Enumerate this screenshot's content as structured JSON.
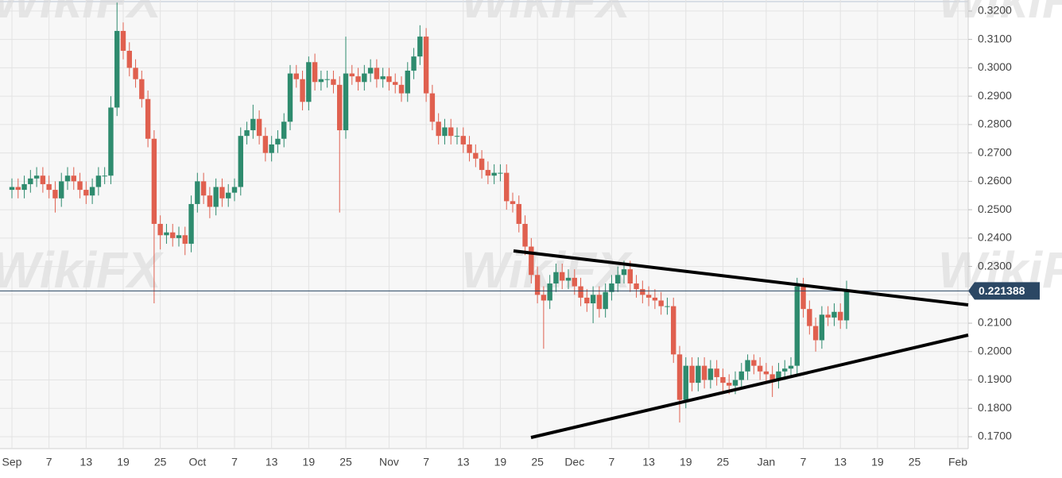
{
  "chart_data": {
    "type": "candlestick",
    "watermark": "WikiFX",
    "up_color": "#2e8b6e",
    "down_color": "#e0604f",
    "grid": true,
    "categories": [
      "Sep",
      null,
      null,
      null,
      null,
      null,
      "7",
      null,
      null,
      null,
      null,
      null,
      "13",
      null,
      null,
      null,
      null,
      null,
      "19",
      null,
      null,
      null,
      null,
      null,
      "25",
      null,
      null,
      null,
      null,
      null,
      "Oct",
      null,
      null,
      null,
      null,
      null,
      "7",
      null,
      null,
      null,
      null,
      null,
      "13",
      null,
      null,
      null,
      null,
      null,
      "19",
      null,
      null,
      null,
      null,
      null,
      "25",
      null,
      null,
      null,
      null,
      null,
      null,
      "Nov",
      null,
      null,
      null,
      null,
      null,
      "7",
      null,
      null,
      null,
      null,
      null,
      "13",
      null,
      null,
      null,
      null,
      null,
      "19",
      null,
      null,
      null,
      null,
      null,
      "25",
      null,
      null,
      null,
      null,
      null,
      "Dec",
      null,
      null,
      null,
      null,
      null,
      "7",
      null,
      null,
      null,
      null,
      null,
      "13",
      null,
      null,
      null,
      null,
      null,
      "19",
      null,
      null,
      null,
      null,
      null,
      "25",
      null,
      null,
      null,
      null,
      null,
      null,
      "Jan",
      null,
      null,
      null,
      null,
      null,
      "7",
      null,
      null,
      null,
      null,
      null,
      "13",
      null,
      null,
      null,
      null,
      null,
      "19",
      null,
      null,
      null,
      null,
      null,
      "25",
      null,
      null,
      null,
      null,
      null,
      null,
      "Feb"
    ],
    "open": [
      0.257,
      0.258,
      0.257,
      0.259,
      0.261,
      0.262,
      0.259,
      0.257,
      0.254,
      0.26,
      0.262,
      0.26,
      0.257,
      0.255,
      0.258,
      0.262,
      0.262,
      0.286,
      0.313,
      0.306,
      0.3,
      0.296,
      0.289,
      0.275,
      0.245,
      0.241,
      0.242,
      0.24,
      0.241,
      0.238,
      0.252,
      0.26,
      0.255,
      0.251,
      0.258,
      0.254,
      0.256,
      0.258,
      0.276,
      0.278,
      0.282,
      0.276,
      0.27,
      0.273,
      0.275,
      0.281,
      0.298,
      0.296,
      0.288,
      0.302,
      0.295,
      0.296,
      0.296,
      0.294,
      0.278,
      0.298,
      0.297,
      0.295,
      0.298,
      0.3,
      0.296,
      0.297,
      0.295,
      0.294,
      0.291,
      0.299,
      0.304,
      0.311,
      0.291,
      0.281,
      0.276,
      0.279,
      0.276,
      0.276,
      0.273,
      0.27,
      0.268,
      0.264,
      0.262,
      0.263,
      0.263,
      0.253,
      0.252,
      0.245,
      0.237,
      0.227,
      0.22,
      0.218,
      0.224,
      0.228,
      0.225,
      0.226,
      0.223,
      0.219,
      0.217,
      0.22,
      0.215,
      0.221,
      0.224,
      0.227,
      0.229,
      0.224,
      0.222,
      0.22,
      0.219,
      0.218,
      0.216,
      0.216,
      0.199,
      0.183,
      0.195,
      0.189,
      0.195,
      0.19,
      0.194,
      0.191,
      0.189,
      0.188,
      0.19,
      0.193,
      0.197,
      0.195,
      0.193,
      0.192,
      0.19,
      0.193,
      0.194,
      0.195,
      0.223,
      0.215,
      0.209,
      0.204,
      0.213,
      0.212,
      0.214,
      0.211,
      null,
      null,
      null,
      null,
      null,
      null,
      null,
      null,
      null,
      null,
      null,
      null,
      null,
      null,
      null,
      null,
      null,
      null
    ],
    "high": [
      0.261,
      0.261,
      0.262,
      0.264,
      0.265,
      0.265,
      0.262,
      0.26,
      0.263,
      0.265,
      0.265,
      0.263,
      0.26,
      0.261,
      0.265,
      0.265,
      0.29,
      0.323,
      0.316,
      0.309,
      0.303,
      0.299,
      0.292,
      0.278,
      0.248,
      0.245,
      0.245,
      0.244,
      0.244,
      0.255,
      0.263,
      0.263,
      0.258,
      0.261,
      0.261,
      0.259,
      0.261,
      0.279,
      0.281,
      0.287,
      0.285,
      0.279,
      0.276,
      0.278,
      0.284,
      0.301,
      0.301,
      0.299,
      0.304,
      0.305,
      0.299,
      0.299,
      0.299,
      0.297,
      0.311,
      0.301,
      0.3,
      0.301,
      0.303,
      0.303,
      0.3,
      0.3,
      0.298,
      0.297,
      0.302,
      0.307,
      0.315,
      0.314,
      0.294,
      0.284,
      0.282,
      0.282,
      0.279,
      0.279,
      0.276,
      0.273,
      0.271,
      0.267,
      0.266,
      0.266,
      0.266,
      0.256,
      0.255,
      0.248,
      0.24,
      0.23,
      0.223,
      0.227,
      0.231,
      0.231,
      0.229,
      0.229,
      0.226,
      0.222,
      0.223,
      0.223,
      0.224,
      0.227,
      0.23,
      0.232,
      0.232,
      0.227,
      0.225,
      0.223,
      0.222,
      0.221,
      0.219,
      0.219,
      0.202,
      0.198,
      0.198,
      0.198,
      0.198,
      0.197,
      0.197,
      0.194,
      0.192,
      0.193,
      0.196,
      0.199,
      0.199,
      0.198,
      0.196,
      0.195,
      0.196,
      0.197,
      0.198,
      0.226,
      0.226,
      0.218,
      0.212,
      0.216,
      0.216,
      0.217,
      0.217,
      0.225,
      null,
      null,
      null,
      null,
      null,
      null,
      null,
      null,
      null,
      null,
      null,
      null,
      null,
      null,
      null,
      null,
      null,
      null
    ],
    "low": [
      0.254,
      0.254,
      0.254,
      0.256,
      0.258,
      0.256,
      0.254,
      0.249,
      0.251,
      0.257,
      0.257,
      0.254,
      0.252,
      0.252,
      0.255,
      0.259,
      0.259,
      0.283,
      0.303,
      0.297,
      0.293,
      0.286,
      0.272,
      0.217,
      0.236,
      0.238,
      0.237,
      0.237,
      0.234,
      0.235,
      0.249,
      0.252,
      0.247,
      0.248,
      0.251,
      0.251,
      0.253,
      0.255,
      0.273,
      0.275,
      0.273,
      0.267,
      0.267,
      0.27,
      0.272,
      0.278,
      0.293,
      0.285,
      0.285,
      0.292,
      0.292,
      0.293,
      0.291,
      0.249,
      0.275,
      0.294,
      0.292,
      0.292,
      0.295,
      0.293,
      0.293,
      0.292,
      0.291,
      0.288,
      0.288,
      0.296,
      0.301,
      0.288,
      0.278,
      0.273,
      0.273,
      0.273,
      0.273,
      0.27,
      0.267,
      0.265,
      0.261,
      0.259,
      0.259,
      0.26,
      0.25,
      0.249,
      0.242,
      0.234,
      0.224,
      0.217,
      0.201,
      0.215,
      0.221,
      0.222,
      0.222,
      0.22,
      0.216,
      0.214,
      0.21,
      0.212,
      0.212,
      0.218,
      0.221,
      0.224,
      0.221,
      0.219,
      0.217,
      0.216,
      0.215,
      0.213,
      0.213,
      0.196,
      0.175,
      0.18,
      0.186,
      0.186,
      0.187,
      0.187,
      0.188,
      0.186,
      0.185,
      0.185,
      0.187,
      0.19,
      0.192,
      0.19,
      0.189,
      0.184,
      0.187,
      0.19,
      0.191,
      0.192,
      0.212,
      0.206,
      0.2,
      0.201,
      0.209,
      0.209,
      0.208,
      0.208,
      null,
      null,
      null,
      null,
      null,
      null,
      null,
      null,
      null,
      null,
      null,
      null,
      null,
      null,
      null,
      null,
      null,
      null
    ],
    "close": [
      0.258,
      0.257,
      0.259,
      0.261,
      0.262,
      0.259,
      0.257,
      0.254,
      0.26,
      0.262,
      0.26,
      0.257,
      0.255,
      0.258,
      0.262,
      0.262,
      0.286,
      0.313,
      0.306,
      0.3,
      0.296,
      0.289,
      0.275,
      0.245,
      0.241,
      0.242,
      0.24,
      0.241,
      0.238,
      0.252,
      0.26,
      0.255,
      0.251,
      0.258,
      0.254,
      0.256,
      0.258,
      0.276,
      0.278,
      0.282,
      0.276,
      0.27,
      0.273,
      0.275,
      0.281,
      0.298,
      0.296,
      0.288,
      0.302,
      0.295,
      0.296,
      0.296,
      0.294,
      0.278,
      0.298,
      0.297,
      0.295,
      0.298,
      0.3,
      0.296,
      0.297,
      0.295,
      0.294,
      0.291,
      0.299,
      0.304,
      0.311,
      0.291,
      0.281,
      0.276,
      0.279,
      0.276,
      0.276,
      0.273,
      0.27,
      0.268,
      0.264,
      0.262,
      0.263,
      0.263,
      0.253,
      0.252,
      0.245,
      0.237,
      0.227,
      0.22,
      0.218,
      0.224,
      0.228,
      0.225,
      0.226,
      0.223,
      0.219,
      0.217,
      0.22,
      0.215,
      0.221,
      0.224,
      0.227,
      0.229,
      0.224,
      0.222,
      0.22,
      0.219,
      0.218,
      0.216,
      0.216,
      0.199,
      0.183,
      0.195,
      0.189,
      0.195,
      0.19,
      0.194,
      0.191,
      0.189,
      0.188,
      0.19,
      0.193,
      0.197,
      0.195,
      0.193,
      0.192,
      0.19,
      0.193,
      0.194,
      0.195,
      0.223,
      0.215,
      0.209,
      0.204,
      0.213,
      0.212,
      0.214,
      0.211,
      0.2214,
      null,
      null,
      null,
      null,
      null,
      null,
      null,
      null,
      null,
      null,
      null,
      null,
      null,
      null,
      null,
      null,
      null,
      null
    ],
    "last_price": 0.221388,
    "last_price_color": "#2b4764",
    "ylim": [
      0.1658,
      0.3239
    ],
    "yticks": [
      {
        "value": 0.17,
        "label": "0.1700"
      },
      {
        "value": 0.18,
        "label": "0.1800"
      },
      {
        "value": 0.19,
        "label": "0.1900"
      },
      {
        "value": 0.2,
        "label": "0.2000"
      },
      {
        "value": 0.21,
        "label": "0.2100"
      },
      {
        "value": 0.22,
        "label": "0.2200"
      },
      {
        "value": 0.23,
        "label": "0.2300"
      },
      {
        "value": 0.24,
        "label": "0.2400"
      },
      {
        "value": 0.25,
        "label": "0.2500"
      },
      {
        "value": 0.26,
        "label": "0.2600"
      },
      {
        "value": 0.27,
        "label": "0.2700"
      },
      {
        "value": 0.28,
        "label": "0.2800"
      },
      {
        "value": 0.29,
        "label": "0.2900"
      },
      {
        "value": 0.3,
        "label": "0.3000"
      },
      {
        "value": 0.31,
        "label": "0.3100"
      },
      {
        "value": 0.32,
        "label": "0.3200"
      }
    ]
  }
}
